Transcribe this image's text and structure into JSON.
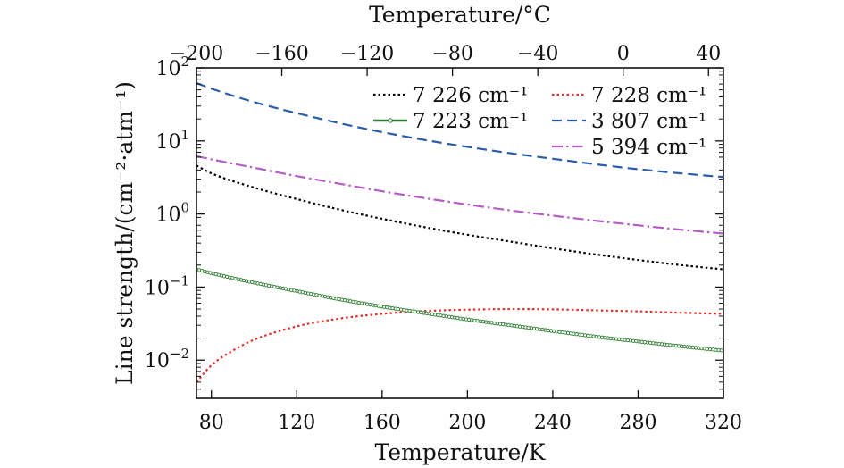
{
  "chart_data": {
    "type": "line",
    "title": "",
    "xlabel": "Temperature/K",
    "x2label": "Temperature/°C",
    "ylabel": "Line strength/(cm⁻²·atm⁻¹)",
    "yscale": "log",
    "xlim": [
      73,
      320
    ],
    "x2lim": [
      -200,
      47
    ],
    "ylim": [
      0.003,
      100
    ],
    "xticks": [
      80,
      120,
      160,
      200,
      240,
      280,
      320
    ],
    "xtick_labels": [
      "80",
      "120",
      "160",
      "200",
      "240",
      "280",
      "320"
    ],
    "x2ticks": [
      -200,
      -160,
      -120,
      -80,
      -40,
      0,
      40
    ],
    "x2tick_labels": [
      "−200",
      "−160",
      "−120",
      "−80",
      "−40",
      "0",
      "40"
    ],
    "yticks": [
      100,
      10,
      1,
      0.1,
      0.01
    ],
    "ytick_labels": [
      {
        "base": "10",
        "exp": "2"
      },
      {
        "base": "10",
        "exp": "1"
      },
      {
        "base": "10",
        "exp": "0"
      },
      {
        "base": "10",
        "exp": "−1"
      },
      {
        "base": "10",
        "exp": "−2"
      }
    ],
    "legend_position": "top-right",
    "series": [
      {
        "name": "7 226 cm⁻¹",
        "color": "#000000",
        "style": "dotted",
        "x": [
          73,
          80,
          100,
          120,
          140,
          160,
          180,
          200,
          220,
          240,
          260,
          280,
          300,
          320
        ],
        "y": [
          4.6,
          3.6,
          2.3,
          1.6,
          1.15,
          0.86,
          0.66,
          0.52,
          0.42,
          0.34,
          0.28,
          0.235,
          0.2,
          0.175
        ]
      },
      {
        "name": "7 228 cm⁻¹",
        "color": "#e0302a",
        "style": "dotted",
        "x": [
          73,
          80,
          90,
          100,
          120,
          140,
          160,
          180,
          200,
          220,
          240,
          260,
          280,
          300,
          320
        ],
        "y": [
          0.005,
          0.0085,
          0.0135,
          0.019,
          0.029,
          0.037,
          0.043,
          0.047,
          0.049,
          0.05,
          0.0495,
          0.048,
          0.0465,
          0.0445,
          0.043
        ]
      },
      {
        "name": "7 223 cm⁻¹",
        "color": "#2e7d32",
        "style": "solid-marker",
        "x": [
          73,
          80,
          100,
          120,
          140,
          160,
          180,
          200,
          220,
          240,
          260,
          280,
          300,
          320
        ],
        "y": [
          0.175,
          0.155,
          0.115,
          0.088,
          0.068,
          0.054,
          0.044,
          0.036,
          0.03,
          0.025,
          0.021,
          0.018,
          0.0155,
          0.0135
        ]
      },
      {
        "name": "3 807 cm⁻¹",
        "color": "#2a5ca8",
        "style": "dashed",
        "x": [
          73,
          80,
          100,
          120,
          140,
          160,
          180,
          200,
          220,
          240,
          260,
          280,
          300,
          320
        ],
        "y": [
          62,
          52,
          34,
          24,
          17.5,
          13.2,
          10.3,
          8.3,
          6.8,
          5.7,
          4.8,
          4.1,
          3.6,
          3.2
        ]
      },
      {
        "name": "5 394 cm⁻¹",
        "color": "#b35fc4",
        "style": "dashdot",
        "x": [
          73,
          80,
          100,
          120,
          140,
          160,
          180,
          200,
          220,
          240,
          260,
          280,
          300,
          320
        ],
        "y": [
          6.2,
          5.6,
          4.3,
          3.3,
          2.6,
          2.05,
          1.65,
          1.35,
          1.12,
          0.95,
          0.81,
          0.7,
          0.61,
          0.54
        ]
      }
    ]
  }
}
